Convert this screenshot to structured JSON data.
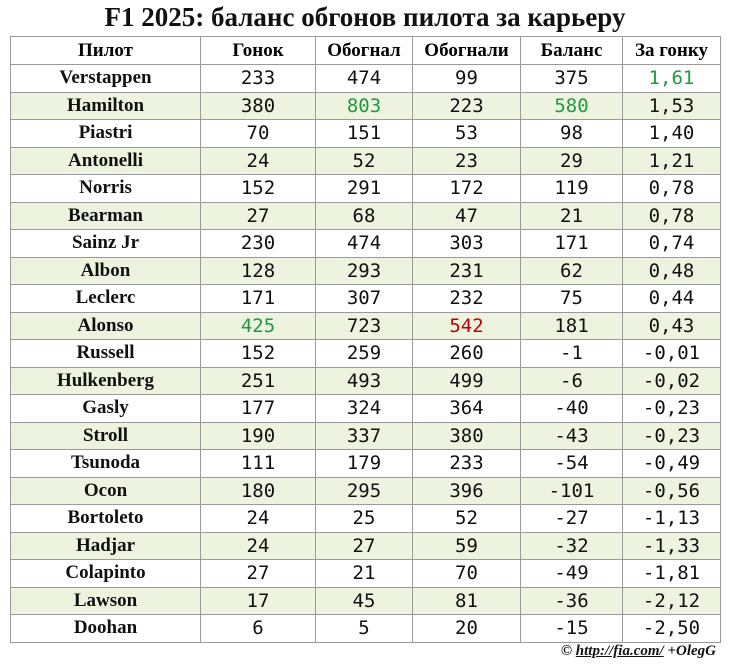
{
  "title": "F1 2025: баланс обгонов пилота за карьеру",
  "table": {
    "header": [
      "Пилот",
      "Гонок",
      "Обогнал",
      "Обогнали",
      "Баланс",
      "За гонку"
    ],
    "rows": [
      [
        "Verstappen",
        233,
        474,
        99,
        375,
        "1,61"
      ],
      [
        "Hamilton",
        380,
        803,
        223,
        580,
        "1,53"
      ],
      [
        "Piastri",
        70,
        151,
        53,
        98,
        "1,40"
      ],
      [
        "Antonelli",
        24,
        52,
        23,
        29,
        "1,21"
      ],
      [
        "Norris",
        152,
        291,
        172,
        119,
        "0,78"
      ],
      [
        "Bearman",
        27,
        68,
        47,
        21,
        "0,78"
      ],
      [
        "Sainz Jr",
        230,
        474,
        303,
        171,
        "0,74"
      ],
      [
        "Albon",
        128,
        293,
        231,
        62,
        "0,48"
      ],
      [
        "Leclerc",
        171,
        307,
        232,
        75,
        "0,44"
      ],
      [
        "Alonso",
        425,
        723,
        542,
        181,
        "0,43"
      ],
      [
        "Russell",
        152,
        259,
        260,
        -1,
        "-0,01"
      ],
      [
        "Hulkenberg",
        251,
        493,
        499,
        -6,
        "-0,02"
      ],
      [
        "Gasly",
        177,
        324,
        364,
        -40,
        "-0,23"
      ],
      [
        "Stroll",
        190,
        337,
        380,
        -43,
        "-0,23"
      ],
      [
        "Tsunoda",
        111,
        179,
        233,
        -54,
        "-0,49"
      ],
      [
        "Ocon",
        180,
        295,
        396,
        -101,
        "-0,56"
      ],
      [
        "Bortoleto",
        24,
        25,
        52,
        -27,
        "-1,13"
      ],
      [
        "Hadjar",
        24,
        27,
        59,
        -32,
        "-1,33"
      ],
      [
        "Colapinto",
        27,
        21,
        70,
        -49,
        "-1,81"
      ],
      [
        "Lawson",
        17,
        45,
        81,
        -36,
        "-2,12"
      ],
      [
        "Doohan",
        6,
        5,
        20,
        -15,
        "-2,50"
      ]
    ]
  },
  "footer": {
    "copyright": "©",
    "link": "http://fia.com/",
    "author": "+OlegG"
  }
}
